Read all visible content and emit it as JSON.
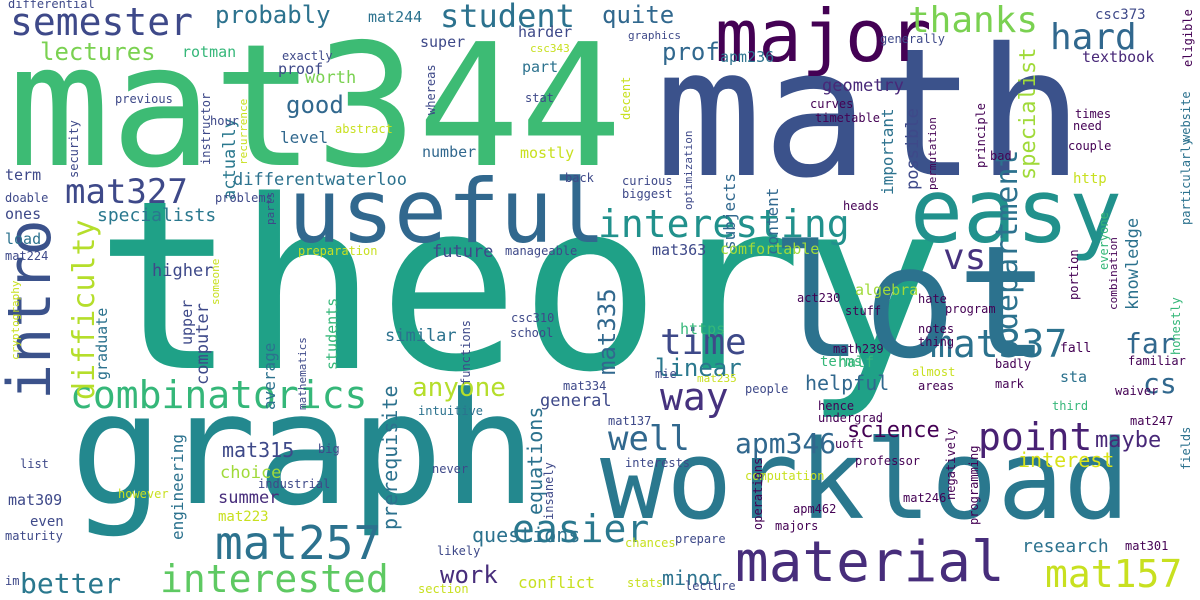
{
  "colors": {
    "background": "#ffffff",
    "palette": [
      "#440154",
      "#46327e",
      "#365c8d",
      "#277f8e",
      "#1fa187",
      "#4ac16d",
      "#a0da39",
      "#fde725"
    ]
  },
  "words": [
    {
      "id": "theory",
      "text": "theory",
      "color": "#1fa187"
    },
    {
      "id": "mat344",
      "text": "mat344",
      "color": "#3dbb74"
    },
    {
      "id": "math",
      "text": "math",
      "color": "#3b528b"
    },
    {
      "id": "graph",
      "text": "graph",
      "color": "#23888e"
    },
    {
      "id": "lot",
      "text": "lot",
      "color": "#2c728e"
    },
    {
      "id": "workload",
      "text": "workload",
      "color": "#2a788e"
    },
    {
      "id": "useful",
      "text": "useful",
      "color": "#31688e"
    },
    {
      "id": "easy",
      "text": "easy",
      "color": "#21918c"
    },
    {
      "id": "major",
      "text": "major",
      "color": "#440154"
    },
    {
      "id": "intro",
      "text": "intro",
      "color": "#3b528b"
    },
    {
      "id": "material",
      "text": "material",
      "color": "#472d7b"
    },
    {
      "id": "mat257",
      "text": "mat257",
      "color": "#2c728e"
    },
    {
      "id": "interested",
      "text": "interested",
      "color": "#5ec962"
    },
    {
      "id": "combinatorics",
      "text": "combinatorics",
      "color": "#35b779"
    },
    {
      "id": "interesting",
      "text": "interesting",
      "color": "#21918c"
    },
    {
      "id": "mat337",
      "text": "mat337",
      "color": "#2c728e"
    },
    {
      "id": "mat157",
      "text": "mat157",
      "color": "#c8e020"
    },
    {
      "id": "semester",
      "text": "semester",
      "color": "#3e4989"
    },
    {
      "id": "easier",
      "text": "easier",
      "color": "#2a788e"
    },
    {
      "id": "way",
      "text": "way",
      "color": "#46327e"
    },
    {
      "id": "point",
      "text": "point",
      "color": "#482173"
    },
    {
      "id": "well",
      "text": "well",
      "color": "#31688e"
    },
    {
      "id": "hard",
      "text": "hard",
      "color": "#31688e"
    },
    {
      "id": "thanks",
      "text": "thanks",
      "color": "#7ad151"
    },
    {
      "id": "vs",
      "text": "vs",
      "color": "#46327e"
    },
    {
      "id": "time",
      "text": "time",
      "color": "#3e4989"
    },
    {
      "id": "mat327",
      "text": "mat327",
      "color": "#3e4989"
    },
    {
      "id": "student",
      "text": "student",
      "color": "#2c728e"
    },
    {
      "id": "anyone",
      "text": "anyone",
      "color": "#b5de2b"
    },
    {
      "id": "department",
      "text": "department",
      "color": "#2c728e"
    },
    {
      "id": "difficulty",
      "text": "difficulty",
      "color": "#b5de2b"
    },
    {
      "id": "apm346",
      "text": "apm346",
      "color": "#31688e"
    },
    {
      "id": "cs",
      "text": "cs",
      "color": "#31688e"
    },
    {
      "id": "far",
      "text": "far",
      "color": "#31688e"
    },
    {
      "id": "better",
      "text": "better",
      "color": "#2a788e"
    },
    {
      "id": "work",
      "text": "work",
      "color": "#472d7b"
    },
    {
      "id": "probably",
      "text": "probably",
      "color": "#2c728e"
    },
    {
      "id": "quite",
      "text": "quite",
      "color": "#31688e"
    },
    {
      "id": "lectures",
      "text": "lectures",
      "color": "#7ad151"
    },
    {
      "id": "good",
      "text": "good",
      "color": "#31688e"
    },
    {
      "id": "prof",
      "text": "prof",
      "color": "#31688e"
    },
    {
      "id": "linear",
      "text": "linear",
      "color": "#2a788e"
    },
    {
      "id": "mat335",
      "text": "mat335",
      "color": "#31688e"
    },
    {
      "id": "maybe",
      "text": "maybe",
      "color": "#482878"
    },
    {
      "id": "science",
      "text": "science",
      "color": "#440154"
    },
    {
      "id": "specialist",
      "text": "specialist",
      "color": "#a0da39"
    },
    {
      "id": "mat315",
      "text": "mat315",
      "color": "#3e4989"
    },
    {
      "id": "questions",
      "text": "questions",
      "color": "#2c728e"
    },
    {
      "id": "interest",
      "text": "interest",
      "color": "#d8e219"
    },
    {
      "id": "research",
      "text": "research",
      "color": "#2c728e"
    },
    {
      "id": "helpful",
      "text": "helpful",
      "color": "#31688e"
    },
    {
      "id": "minor",
      "text": "minor",
      "color": "#2c728e"
    },
    {
      "id": "equations",
      "text": "equations",
      "color": "#2c728e"
    },
    {
      "id": "prerequisite",
      "text": "prerequisite",
      "color": "#2c728e"
    },
    {
      "id": "specialists",
      "text": "specialists",
      "color": "#2a788e"
    },
    {
      "id": "future",
      "text": "future",
      "color": "#3e4989"
    },
    {
      "id": "higher",
      "text": "higher",
      "color": "#3e4989"
    },
    {
      "id": "general",
      "text": "general",
      "color": "#3e4989"
    },
    {
      "id": "differentwaterloo",
      "text": "differentwaterloo",
      "color": "#2c728e"
    },
    {
      "id": "geometry",
      "text": "geometry",
      "color": "#482878"
    },
    {
      "id": "worth",
      "text": "worth",
      "color": "#7ad151"
    },
    {
      "id": "summer",
      "text": "summer",
      "color": "#472d7b"
    },
    {
      "id": "choice",
      "text": "choice",
      "color": "#a0da39"
    },
    {
      "id": "similar",
      "text": "similar",
      "color": "#2c728e"
    },
    {
      "id": "average",
      "text": "average",
      "color": "#2c728e"
    },
    {
      "id": "content",
      "text": "content",
      "color": "#31688e"
    },
    {
      "id": "subjects",
      "text": "subjects",
      "color": "#31688e"
    },
    {
      "id": "possible",
      "text": "possible",
      "color": "#3e4989"
    },
    {
      "id": "knowledge",
      "text": "knowledge",
      "color": "#2c728e"
    },
    {
      "id": "important",
      "text": "important",
      "color": "#2c728e"
    },
    {
      "id": "computer",
      "text": "computer",
      "color": "#3e4989"
    },
    {
      "id": "upper",
      "text": "upper",
      "color": "#3e4989"
    },
    {
      "id": "engineering",
      "text": "engineering",
      "color": "#2c728e"
    },
    {
      "id": "graduate",
      "text": "graduate",
      "color": "#2c728e"
    },
    {
      "id": "actually",
      "text": "actually",
      "color": "#2a788e"
    },
    {
      "id": "level",
      "text": "level",
      "color": "#31688e"
    },
    {
      "id": "proof",
      "text": "proof",
      "color": "#3e4989"
    },
    {
      "id": "super",
      "text": "super",
      "color": "#3e4989"
    },
    {
      "id": "harder",
      "text": "harder",
      "color": "#3e4989"
    },
    {
      "id": "part",
      "text": "part",
      "color": "#2c728e"
    },
    {
      "id": "mostly",
      "text": "mostly",
      "color": "#c8e020"
    },
    {
      "id": "number",
      "text": "number",
      "color": "#31688e"
    },
    {
      "id": "apm236",
      "text": "apm236",
      "color": "#2c728e"
    },
    {
      "id": "mat244",
      "text": "mat244",
      "color": "#2c728e"
    },
    {
      "id": "mat363",
      "text": "mat363",
      "color": "#3e4989"
    },
    {
      "id": "comfortable",
      "text": "comfortable",
      "color": "#a0da39"
    },
    {
      "id": "algebra",
      "text": "algebra",
      "color": "#a0da39"
    },
    {
      "id": "https",
      "text": "https",
      "color": "#35b779"
    },
    {
      "id": "half",
      "text": "half",
      "color": "#35b779"
    },
    {
      "id": "terms",
      "text": "terms",
      "color": "#35b779"
    },
    {
      "id": "textbook",
      "text": "textbook",
      "color": "#482878"
    },
    {
      "id": "csc373",
      "text": "csc373",
      "color": "#3e4989"
    },
    {
      "id": "http",
      "text": "http",
      "color": "#c8e020"
    },
    {
      "id": "sta",
      "text": "sta",
      "color": "#2c728e"
    },
    {
      "id": "term",
      "text": "term",
      "color": "#3e4989"
    },
    {
      "id": "ones",
      "text": "ones",
      "color": "#3e4989"
    },
    {
      "id": "load",
      "text": "load",
      "color": "#2c728e"
    },
    {
      "id": "mat309",
      "text": "mat309",
      "color": "#3e4989"
    },
    {
      "id": "even",
      "text": "even",
      "color": "#3e4989"
    },
    {
      "id": "mat223",
      "text": "mat223",
      "color": "#c8e020"
    },
    {
      "id": "rotman",
      "text": "rotman",
      "color": "#35b779"
    },
    {
      "id": "students",
      "text": "students",
      "color": "#35b779"
    },
    {
      "id": "fall",
      "text": "fall",
      "color": "#440154"
    },
    {
      "id": "badly",
      "text": "badly",
      "color": "#440154"
    },
    {
      "id": "stuff",
      "text": "stuff",
      "color": "#440154"
    },
    {
      "id": "hate",
      "text": "hate",
      "color": "#440154"
    },
    {
      "id": "notes",
      "text": "notes",
      "color": "#440154"
    },
    {
      "id": "thing",
      "text": "thing",
      "color": "#440154"
    },
    {
      "id": "almost",
      "text": "almost",
      "color": "#c8e020"
    },
    {
      "id": "areas",
      "text": "areas",
      "color": "#440154"
    },
    {
      "id": "mark",
      "text": "mark",
      "color": "#440154"
    },
    {
      "id": "third",
      "text": "third",
      "color": "#35b779"
    },
    {
      "id": "waiver",
      "text": "waiver",
      "color": "#440154"
    },
    {
      "id": "familiar",
      "text": "familiar",
      "color": "#440154"
    },
    {
      "id": "program",
      "text": "program",
      "color": "#440154"
    },
    {
      "id": "mat247",
      "text": "mat247",
      "color": "#440154"
    },
    {
      "id": "fields",
      "text": "fields",
      "color": "#2c728e"
    },
    {
      "id": "mat301",
      "text": "mat301",
      "color": "#440154"
    },
    {
      "id": "honestly",
      "text": "honestly",
      "color": "#35b779"
    },
    {
      "id": "particularly",
      "text": "particularly",
      "color": "#2c728e"
    },
    {
      "id": "website",
      "text": "website",
      "color": "#2c728e"
    },
    {
      "id": "eligible",
      "text": "eligible",
      "color": "#440154"
    },
    {
      "id": "everyone",
      "text": "everyone",
      "color": "#35b779"
    },
    {
      "id": "combination",
      "text": "combination",
      "color": "#440154"
    },
    {
      "id": "portion",
      "text": "portion",
      "color": "#440154"
    },
    {
      "id": "couple",
      "text": "couple",
      "color": "#440154"
    },
    {
      "id": "need",
      "text": "need",
      "color": "#440154"
    },
    {
      "id": "times",
      "text": "times",
      "color": "#440154"
    },
    {
      "id": "bad",
      "text": "bad",
      "color": "#440154"
    },
    {
      "id": "principle",
      "text": "principle",
      "color": "#440154"
    },
    {
      "id": "permutation",
      "text": "permutation",
      "color": "#440154"
    },
    {
      "id": "generally",
      "text": "generally",
      "color": "#3e4989"
    },
    {
      "id": "curves",
      "text": "curves",
      "color": "#440154"
    },
    {
      "id": "timetable",
      "text": "timetable",
      "color": "#440154"
    },
    {
      "id": "heads",
      "text": "heads",
      "color": "#440154"
    },
    {
      "id": "act230",
      "text": "act230",
      "color": "#440154"
    },
    {
      "id": "math239",
      "text": "math239",
      "color": "#440154"
    },
    {
      "id": "hence",
      "text": "hence",
      "color": "#440154"
    },
    {
      "id": "undergrad",
      "text": "undergrad",
      "color": "#440154"
    },
    {
      "id": "uoft",
      "text": "uoft",
      "color": "#440154"
    },
    {
      "id": "professor",
      "text": "professor",
      "color": "#440154"
    },
    {
      "id": "negatively",
      "text": "negatively",
      "color": "#440154"
    },
    {
      "id": "programming",
      "text": "programming",
      "color": "#440154"
    },
    {
      "id": "computation",
      "text": "computation",
      "color": "#c8e020"
    },
    {
      "id": "apm462",
      "text": "apm462",
      "color": "#440154"
    },
    {
      "id": "mat246",
      "text": "mat246",
      "color": "#440154"
    },
    {
      "id": "majors",
      "text": "majors",
      "color": "#440154"
    },
    {
      "id": "operations",
      "text": "operations",
      "color": "#440154"
    },
    {
      "id": "lecture",
      "text": "lecture",
      "color": "#3e4989"
    },
    {
      "id": "prepare",
      "text": "prepare",
      "color": "#3e4989"
    },
    {
      "id": "chances",
      "text": "chances",
      "color": "#c8e020"
    },
    {
      "id": "stats",
      "text": "stats",
      "color": "#c8e020"
    },
    {
      "id": "conflict",
      "text": "conflict",
      "color": "#c8e020"
    },
    {
      "id": "section",
      "text": "section",
      "color": "#c8e020"
    },
    {
      "id": "likely",
      "text": "likely",
      "color": "#3e4989"
    },
    {
      "id": "insanely",
      "text": "insanely",
      "color": "#3e4989"
    },
    {
      "id": "never",
      "text": "never",
      "color": "#3e4989"
    },
    {
      "id": "interests",
      "text": "interests",
      "color": "#3e4989"
    },
    {
      "id": "mat137",
      "text": "mat137",
      "color": "#3e4989"
    },
    {
      "id": "intuitive",
      "text": "intuitive",
      "color": "#2c728e"
    },
    {
      "id": "mat334",
      "text": "mat334",
      "color": "#3e4989"
    },
    {
      "id": "people",
      "text": "people",
      "color": "#3e4989"
    },
    {
      "id": "mie",
      "text": "mie",
      "color": "#3e4989"
    },
    {
      "id": "mat235",
      "text": "mat235",
      "color": "#c8e020"
    },
    {
      "id": "school",
      "text": "school",
      "color": "#3e4989"
    },
    {
      "id": "csc310",
      "text": "csc310",
      "color": "#3e4989"
    },
    {
      "id": "functions",
      "text": "functions",
      "color": "#3e4989"
    },
    {
      "id": "manageable",
      "text": "manageable",
      "color": "#3e4989"
    },
    {
      "id": "preparation",
      "text": "preparation",
      "color": "#c8e020"
    },
    {
      "id": "curious",
      "text": "curious",
      "color": "#3e4989"
    },
    {
      "id": "biggest",
      "text": "biggest",
      "color": "#3e4989"
    },
    {
      "id": "back",
      "text": "back",
      "color": "#3e4989"
    },
    {
      "id": "optimization",
      "text": "optimization",
      "color": "#3e4989"
    },
    {
      "id": "graphics",
      "text": "graphics",
      "color": "#3e4989"
    },
    {
      "id": "csc343",
      "text": "csc343",
      "color": "#c8e020"
    },
    {
      "id": "stat",
      "text": "stat",
      "color": "#3e4989"
    },
    {
      "id": "decent",
      "text": "decent",
      "color": "#c8e020"
    },
    {
      "id": "whereas",
      "text": "whereas",
      "color": "#3e4989"
    },
    {
      "id": "exactly",
      "text": "exactly",
      "color": "#3e4989"
    },
    {
      "id": "abstract",
      "text": "abstract",
      "color": "#c8e020"
    },
    {
      "id": "hour",
      "text": "hour",
      "color": "#3e4989"
    },
    {
      "id": "instructor",
      "text": "instructor",
      "color": "#3e4989"
    },
    {
      "id": "recurrence",
      "text": "recurrence",
      "color": "#c8e020"
    },
    {
      "id": "problems",
      "text": "problems",
      "color": "#3e4989"
    },
    {
      "id": "parts",
      "text": "parts",
      "color": "#3e4989"
    },
    {
      "id": "someone",
      "text": "someone",
      "color": "#c8e020"
    },
    {
      "id": "previous",
      "text": "previous",
      "color": "#3e4989"
    },
    {
      "id": "security",
      "text": "security",
      "color": "#3e4989"
    },
    {
      "id": "doable",
      "text": "doable",
      "color": "#3e4989"
    },
    {
      "id": "mat224",
      "text": "mat224",
      "color": "#3e4989"
    },
    {
      "id": "cryptography",
      "text": "cryptography",
      "color": "#c8e020"
    },
    {
      "id": "mathematics",
      "text": "mathematics",
      "color": "#3e4989"
    },
    {
      "id": "big",
      "text": "big",
      "color": "#3e4989"
    },
    {
      "id": "industrial",
      "text": "industrial",
      "color": "#3e4989"
    },
    {
      "id": "however",
      "text": "however",
      "color": "#c8e020"
    },
    {
      "id": "list",
      "text": "list",
      "color": "#3e4989"
    },
    {
      "id": "maturity",
      "text": "maturity",
      "color": "#3e4989"
    },
    {
      "id": "im",
      "text": "im",
      "color": "#3e4989"
    },
    {
      "id": "differential",
      "text": "differential",
      "color": "#3e4989"
    }
  ]
}
